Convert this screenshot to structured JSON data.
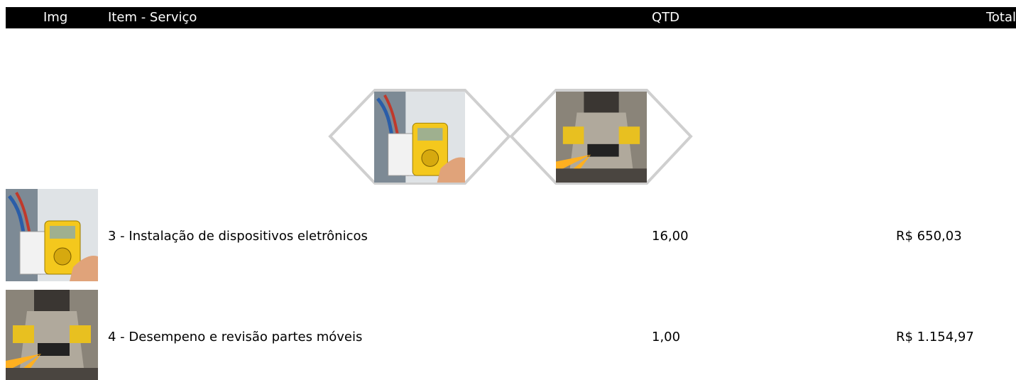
{
  "header": {
    "columns": [
      "Img",
      "Item - Serviço",
      "QTD",
      "Total"
    ]
  },
  "table": {
    "rows": [
      [
        "3 - Instalação de dispositivos eletrônicos",
        "16,00",
        "R$ 650,03"
      ],
      [
        "4 - Desempeno e revisão partes móveis",
        "1,00",
        "R$ 1.154,97"
      ]
    ]
  }
}
